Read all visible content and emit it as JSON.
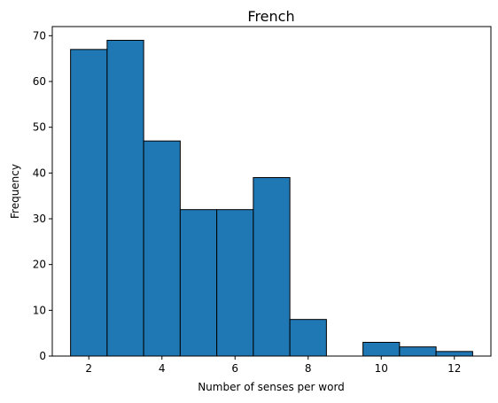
{
  "chart_data": {
    "type": "bar",
    "title": "French",
    "xlabel": "Number of senses per word",
    "ylabel": "Frequency",
    "x": [
      2,
      3,
      4,
      5,
      6,
      7,
      8,
      9,
      10,
      11,
      12
    ],
    "values": [
      67,
      69,
      47,
      32,
      32,
      39,
      8,
      0,
      3,
      2,
      1
    ],
    "bin_width": 1,
    "xlim": [
      1.0,
      13.0
    ],
    "ylim": [
      0,
      72
    ],
    "xticks": [
      2,
      4,
      6,
      8,
      10,
      12
    ],
    "yticks": [
      0,
      10,
      20,
      30,
      40,
      50,
      60,
      70
    ],
    "bar_color": "#1f77b4",
    "edge_color": "#000000",
    "grid": false
  }
}
